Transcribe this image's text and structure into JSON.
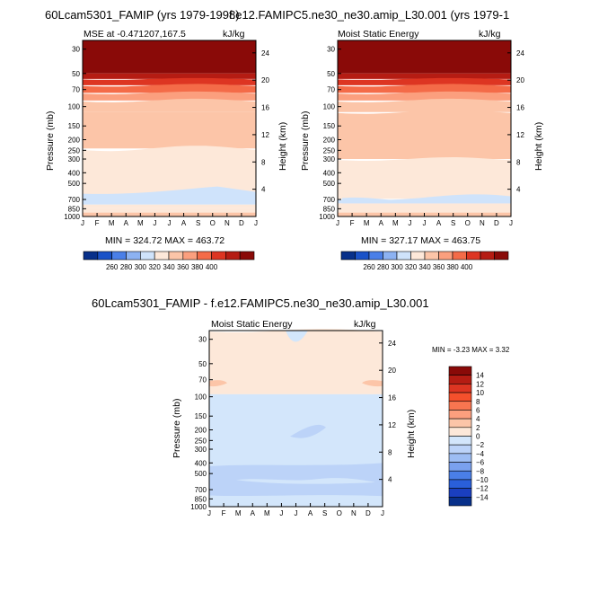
{
  "figure": {
    "title_left": "60Lcam5301_FAMIP (yrs 1979-1998)",
    "title_right": "f.e12.FAMIPC5.ne30_ne30.amip_L30.001 (yrs 1979-1",
    "title_bottom": "60Lcam5301_FAMIP - f.e12.FAMIPC5.ne30_ne30.amip_L30.001"
  },
  "chart_data": [
    {
      "id": "p1",
      "type": "heatmap",
      "title": "MSE at -0.471207,167.5",
      "units": "kJ/kg",
      "ylabel": "Pressure (mb)",
      "y2label": "Height (km)",
      "x_ticks": [
        "J",
        "F",
        "M",
        "A",
        "M",
        "J",
        "J",
        "A",
        "S",
        "O",
        "N",
        "D",
        "J"
      ],
      "y_ticks": [
        30,
        50,
        70,
        100,
        150,
        200,
        250,
        300,
        400,
        500,
        700,
        850,
        1000
      ],
      "y_range_mb": [
        25,
        1000
      ],
      "y2_ticks": [
        24,
        20,
        16,
        12,
        8,
        4
      ],
      "stats": "MIN = 324.72  MAX = 463.72",
      "levels": [
        260,
        280,
        300,
        320,
        340,
        360,
        380,
        400
      ],
      "colors": [
        "#08308a",
        "#1a52c8",
        "#4a7fe8",
        "#8cb2f2",
        "#cfe3fb",
        "#fde8d9",
        "#fcc5a8",
        "#fb9f7e",
        "#f46b48",
        "#dd3522",
        "#b51c13",
        "#8a0a08"
      ],
      "contours": [
        {
          "pressure": 25,
          "value": 410
        },
        {
          "pressure": 48,
          "value": 405
        },
        {
          "pressure": 58,
          "value": 395
        },
        {
          "pressure": 72,
          "value": 385
        },
        {
          "pressure": 88,
          "value": 372
        },
        {
          "pressure": 105,
          "value": 355
        },
        {
          "pressure": 200,
          "value": 345
        },
        {
          "pressure": 600,
          "value": 335
        },
        {
          "pressure": 720,
          "value": 325
        },
        {
          "pressure": 800,
          "value": 335
        },
        {
          "pressure": 1000,
          "value": 345
        }
      ]
    },
    {
      "id": "p2",
      "type": "heatmap",
      "title": "Moist Static Energy",
      "units": "kJ/kg",
      "ylabel": "Pressure (mb)",
      "y2label": "Height (km)",
      "x_ticks": [
        "J",
        "F",
        "M",
        "A",
        "M",
        "J",
        "J",
        "A",
        "S",
        "O",
        "N",
        "D",
        "J"
      ],
      "y_ticks": [
        30,
        50,
        70,
        100,
        150,
        200,
        250,
        300,
        400,
        500,
        700,
        850,
        1000
      ],
      "y_range_mb": [
        25,
        1000
      ],
      "y2_ticks": [
        24,
        20,
        16,
        12,
        8,
        4
      ],
      "stats": "MIN = 327.17  MAX = 463.75",
      "levels": [
        260,
        280,
        300,
        320,
        340,
        360,
        380,
        400
      ],
      "colors": [
        "#08308a",
        "#1a52c8",
        "#4a7fe8",
        "#8cb2f2",
        "#cfe3fb",
        "#fde8d9",
        "#fcc5a8",
        "#fb9f7e",
        "#f46b48",
        "#dd3522",
        "#b51c13",
        "#8a0a08"
      ]
    },
    {
      "id": "p3",
      "type": "heatmap",
      "title": "Moist Static Energy",
      "units": "kJ/kg",
      "ylabel": "Pressure (mb)",
      "y2label": "Height (km)",
      "x_ticks": [
        "J",
        "F",
        "M",
        "A",
        "M",
        "J",
        "J",
        "A",
        "S",
        "O",
        "N",
        "D",
        "J"
      ],
      "y_ticks": [
        30,
        50,
        70,
        100,
        150,
        200,
        250,
        300,
        400,
        500,
        700,
        850,
        1000
      ],
      "y_range_mb": [
        25,
        1000
      ],
      "y2_ticks": [
        24,
        20,
        16,
        12,
        8,
        4
      ],
      "stats": "MIN =   -3.23  MAX =    3.32",
      "levels": [
        14,
        12,
        10,
        8,
        6,
        4,
        2,
        0,
        -2,
        -4,
        -6,
        -8,
        -10,
        -12,
        -14
      ],
      "colors": [
        "#8a0a08",
        "#b51c13",
        "#dd3522",
        "#f4502c",
        "#f87550",
        "#fb9f7e",
        "#fcc5a8",
        "#fde8d9",
        "#d3e6fb",
        "#bcd3f8",
        "#9dbdf3",
        "#7aa1ee",
        "#4a7fe8",
        "#2a5fda",
        "#1a3fc0",
        "#08308a"
      ]
    }
  ]
}
